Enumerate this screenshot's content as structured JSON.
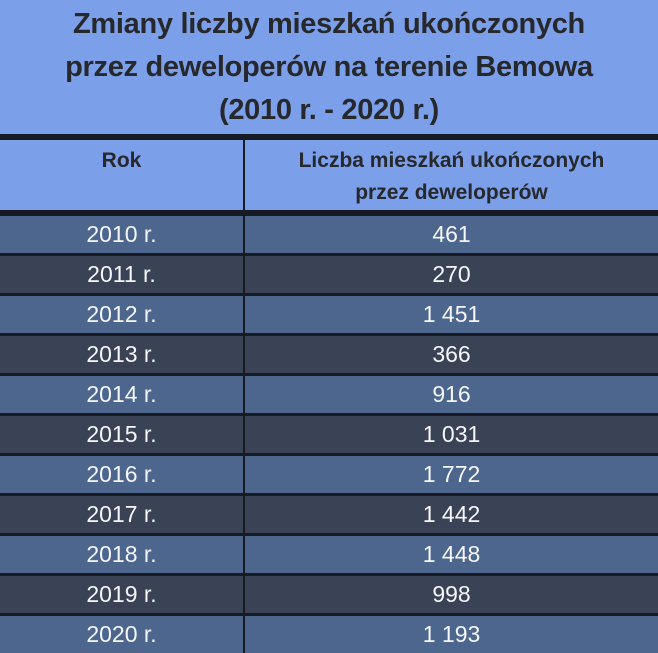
{
  "title": {
    "full": "Zmiany liczby mieszkań ukończonych przez deweloperów na terenie Bemowa (2010 r. - 2020 r.)",
    "line1": "Zmiany liczby mieszkań ukończonych",
    "line2": "przez deweloperów na terenie Bemowa",
    "line3": "(2010 r. - 2020 r.)"
  },
  "header": {
    "col1": "Rok",
    "col2_full": "Liczba mieszkań ukończonych przez deweloperów",
    "col2_line1": "Liczba mieszkań ukończonych",
    "col2_line2": "przez deweloperów"
  },
  "rows": [
    {
      "rok": "2010 r.",
      "liczba": "461"
    },
    {
      "rok": "2011 r.",
      "liczba": "270"
    },
    {
      "rok": "2012 r.",
      "liczba": "1 451"
    },
    {
      "rok": "2013 r.",
      "liczba": "366"
    },
    {
      "rok": "2014 r.",
      "liczba": "916"
    },
    {
      "rok": "2015 r.",
      "liczba": "1 031"
    },
    {
      "rok": "2016 r.",
      "liczba": "1 772"
    },
    {
      "rok": "2017 r.",
      "liczba": "1 442"
    },
    {
      "rok": "2018 r.",
      "liczba": "1 448"
    },
    {
      "rok": "2019 r.",
      "liczba": "998"
    },
    {
      "rok": "2020 r.",
      "liczba": "1 193"
    }
  ],
  "colors": {
    "panel_blue": "#7C9FEA",
    "row_medium": "#4D668E",
    "row_dark": "#3A4356",
    "separator": "#161A23",
    "title_text": "#26282C",
    "row_text": "#F5F7FA"
  },
  "chart_data": {
    "type": "table",
    "title": "Zmiany liczby mieszkań ukończonych przez deweloperów na terenie Bemowa (2010 r. - 2020 r.)",
    "columns": [
      "Rok",
      "Liczba mieszkań ukończonych przez deweloperów"
    ],
    "categories": [
      "2010 r.",
      "2011 r.",
      "2012 r.",
      "2013 r.",
      "2014 r.",
      "2015 r.",
      "2016 r.",
      "2017 r.",
      "2018 r.",
      "2019 r.",
      "2020 r."
    ],
    "values": [
      461,
      270,
      1451,
      366,
      916,
      1031,
      1772,
      1442,
      1448,
      998,
      1193
    ],
    "values_formatted": [
      "461",
      "270",
      "1 451",
      "366",
      "916",
      "1 031",
      "1 772",
      "1 442",
      "1 448",
      "998",
      "1 193"
    ],
    "layout": {
      "alternating_rows": true,
      "thousands_separator": "space"
    }
  }
}
